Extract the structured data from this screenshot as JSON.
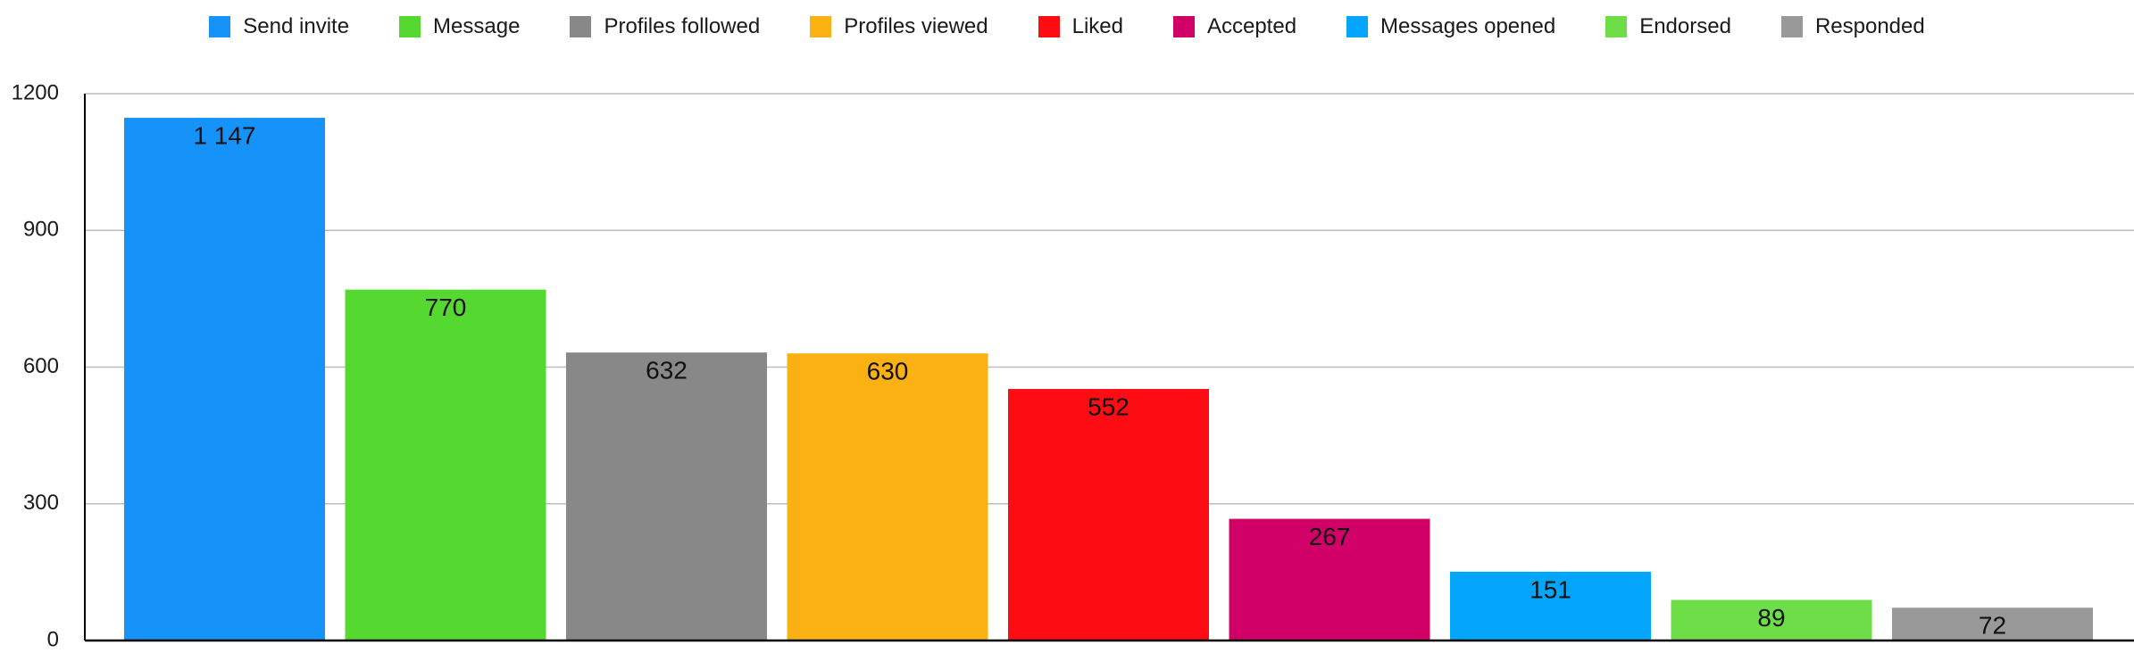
{
  "chart_data": {
    "type": "bar",
    "categories": [
      "Send invite",
      "Message",
      "Profiles followed",
      "Profiles viewed",
      "Liked",
      "Accepted",
      "Messages opened",
      "Endorsed",
      "Responded"
    ],
    "values": [
      1147,
      770,
      632,
      630,
      552,
      267,
      151,
      89,
      72
    ],
    "value_labels": [
      "1 147",
      "770",
      "632",
      "630",
      "552",
      "267",
      "151",
      "89",
      "72"
    ],
    "colors": [
      "#1593f9",
      "#55d82f",
      "#888888",
      "#fbb112",
      "#fe0c13",
      "#d20167",
      "#04a6fb",
      "#6ddd48",
      "#999999"
    ],
    "yticks": [
      "0",
      "300",
      "600",
      "900",
      "1200"
    ],
    "ylim": [
      0,
      1200
    ],
    "grid": true,
    "legend_position": "top",
    "title": "",
    "xlabel": "",
    "ylabel": ""
  }
}
